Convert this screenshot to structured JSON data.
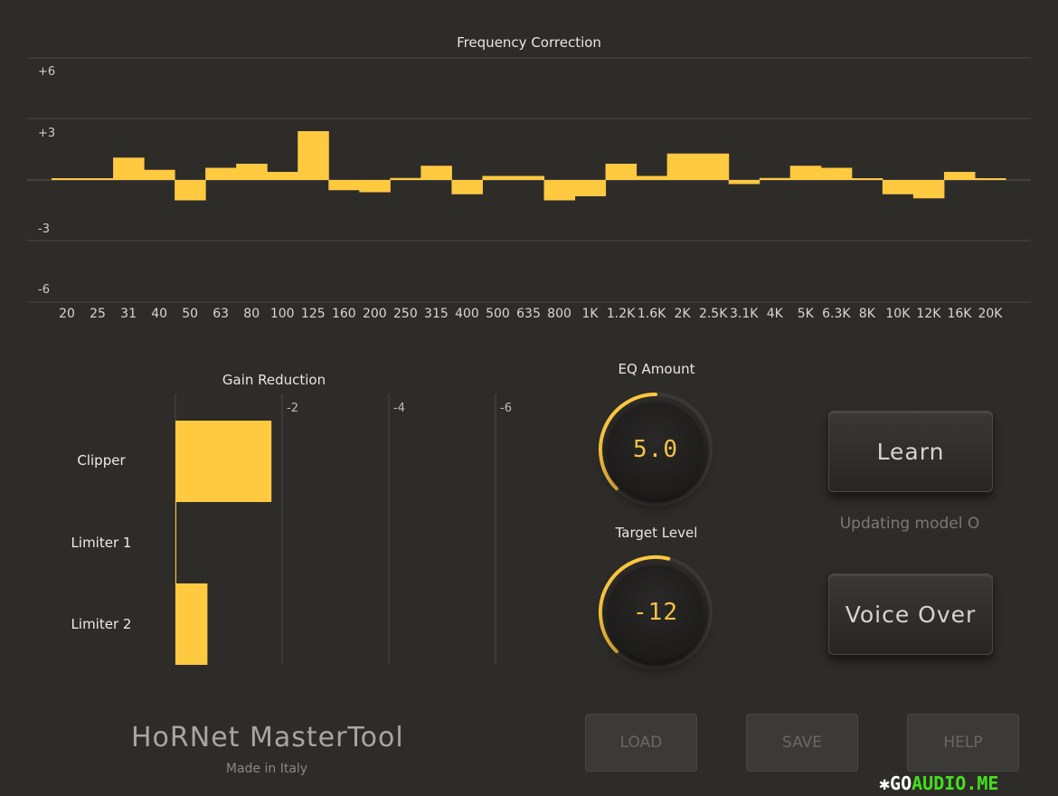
{
  "chart_data": {
    "type": "bar",
    "title": "Frequency Correction",
    "categories": [
      "20",
      "25",
      "31",
      "40",
      "50",
      "63",
      "80",
      "100",
      "125",
      "160",
      "200",
      "250",
      "315",
      "400",
      "500",
      "635",
      "800",
      "1K",
      "1.2K",
      "1.6K",
      "2K",
      "2.5K",
      "3.1K",
      "4K",
      "5K",
      "6.3K",
      "8K",
      "10K",
      "12K",
      "16K",
      "20K"
    ],
    "values": [
      0,
      0,
      1.1,
      0.5,
      -1.0,
      0.6,
      0.8,
      0.4,
      2.4,
      -0.5,
      -0.6,
      0.1,
      0.7,
      -0.7,
      0.2,
      0.2,
      -1.0,
      -0.8,
      0.8,
      0.2,
      1.3,
      1.3,
      -0.2,
      0.1,
      0.7,
      0.6,
      0,
      -0.7,
      -0.9,
      0.4,
      0
    ],
    "yticks": [
      "+6",
      "+3",
      "-3",
      "-6"
    ],
    "ylim": [
      -6,
      6
    ],
    "grid": true
  },
  "gain_reduction": {
    "title": "Gain Reduction",
    "scale_labels": [
      "-2",
      "-4",
      "-6"
    ],
    "rows": [
      {
        "label": "Clipper",
        "value": 1.8
      },
      {
        "label": "Limiter 1",
        "value": 0
      },
      {
        "label": "Limiter 2",
        "value": 0.6
      }
    ],
    "range_db": 6
  },
  "eq_amount": {
    "label": "EQ Amount",
    "value": "5.0",
    "fraction": 0.5
  },
  "target_level": {
    "label": "Target Level",
    "value": "-12",
    "fraction": 0.55
  },
  "learn_button": "Learn",
  "status_text": "Updating model O",
  "voice_over_button": "Voice Over",
  "footer": {
    "brand": "HoRNet MasterTool",
    "subtitle": "Made in Italy",
    "load": "LOAD",
    "save": "SAVE",
    "help": "HELP"
  },
  "watermark": {
    "prefix": "GO",
    "suffix": "AUDIO.ME"
  },
  "colors": {
    "accent": "#ffc940",
    "background": "#2e2c29"
  }
}
